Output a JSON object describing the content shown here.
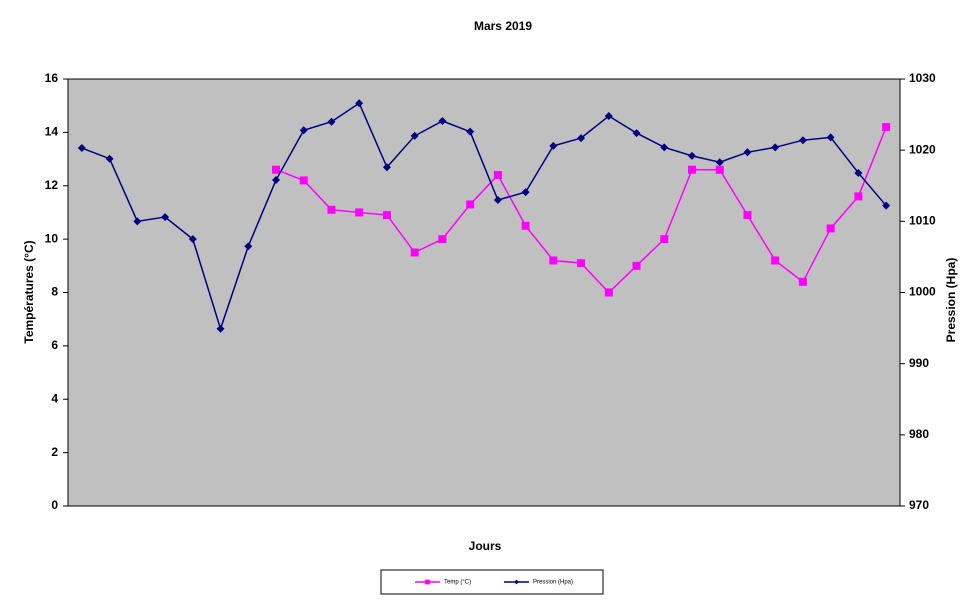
{
  "chart_data": {
    "type": "line",
    "title": "Mars 2019",
    "x_label": "Jours",
    "y_label": "Températures (°C)",
    "y2_label": "Pression (Hpa)",
    "categories": [
      null,
      null,
      null,
      null,
      null,
      null,
      null,
      null,
      null,
      null,
      null,
      null,
      null,
      null,
      null,
      null,
      null,
      null,
      null,
      null,
      null,
      null,
      null,
      null,
      null,
      null,
      null,
      null,
      null,
      null
    ],
    "ylim": [
      0,
      16
    ],
    "yticks": [
      0,
      2,
      4,
      6,
      8,
      10,
      12,
      14,
      16
    ],
    "y2lim": [
      970,
      1030
    ],
    "y2ticks": [
      970,
      980,
      990,
      1000,
      1010,
      1020,
      1030
    ],
    "grid": false,
    "legend": "bottom",
    "series": [
      {
        "name": "Temp (°C)",
        "color": "#ff00ff",
        "marker": "square",
        "values": [
          null,
          null,
          null,
          null,
          null,
          null,
          null,
          12.6,
          12.2,
          11.1,
          11.0,
          10.9,
          9.5,
          10.0,
          11.3,
          12.4,
          10.5,
          9.2,
          9.1,
          8.0,
          9.0,
          10.0,
          12.6,
          12.6,
          10.9,
          9.2,
          8.4,
          10.4,
          11.6,
          14.2
        ]
      },
      {
        "name": "Pression (Hpa)",
        "color": "#000080",
        "marker": "diamond",
        "axis": "y2",
        "values": [
          1020.3,
          1018.8,
          1010.0,
          1010.6,
          1007.5,
          994.9,
          1006.5,
          1015.8,
          1022.8,
          1024.0,
          1026.6,
          1017.6,
          1022.0,
          1024.1,
          1022.6,
          1013.0,
          1014.1,
          1020.6,
          1021.7,
          1024.8,
          1022.4,
          1020.4,
          1019.2,
          1018.3,
          1019.7,
          1020.4,
          1021.4,
          1021.8,
          1016.8,
          1012.2
        ]
      }
    ]
  }
}
